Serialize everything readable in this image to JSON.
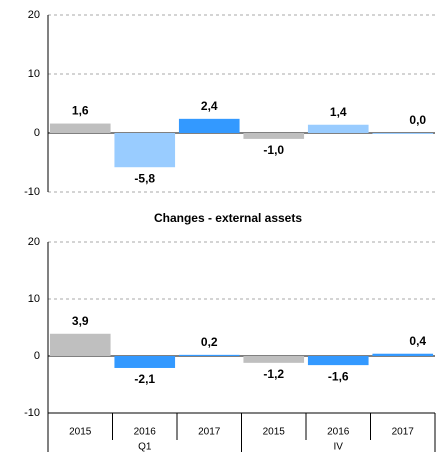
{
  "chart_data": [
    {
      "type": "bar",
      "values": [
        1.6,
        -5.8,
        2.4,
        -1.0,
        1.4,
        0.0
      ],
      "value_labels": [
        "1,6",
        "-5,8",
        "2,4",
        "-1,0",
        "1,4",
        "0,0"
      ],
      "colors": [
        "#bfbfbf",
        "#99ccff",
        "#3399ff",
        "#bfbfbf",
        "#99ccff",
        "#3399ff"
      ],
      "ylim": [
        -10,
        20
      ],
      "yticks": [
        -10,
        0,
        10,
        20
      ],
      "grid": true
    },
    {
      "type": "bar",
      "title": "Changes - external assets",
      "categories": [
        "2015",
        "2016",
        "2017",
        "2015",
        "2016",
        "2017"
      ],
      "groups": [
        "Q1",
        "IV"
      ],
      "values": [
        3.9,
        -2.1,
        0.2,
        -1.2,
        -1.6,
        0.4
      ],
      "value_labels": [
        "3,9",
        "-2,1",
        "0,2",
        "-1,2",
        "-1,6",
        "0,4"
      ],
      "colors": [
        "#bfbfbf",
        "#3399ff",
        "#3399ff",
        "#bfbfbf",
        "#3399ff",
        "#3399ff"
      ],
      "ylim": [
        -10,
        20
      ],
      "yticks": [
        -10,
        0,
        10,
        20
      ],
      "grid": true
    }
  ]
}
